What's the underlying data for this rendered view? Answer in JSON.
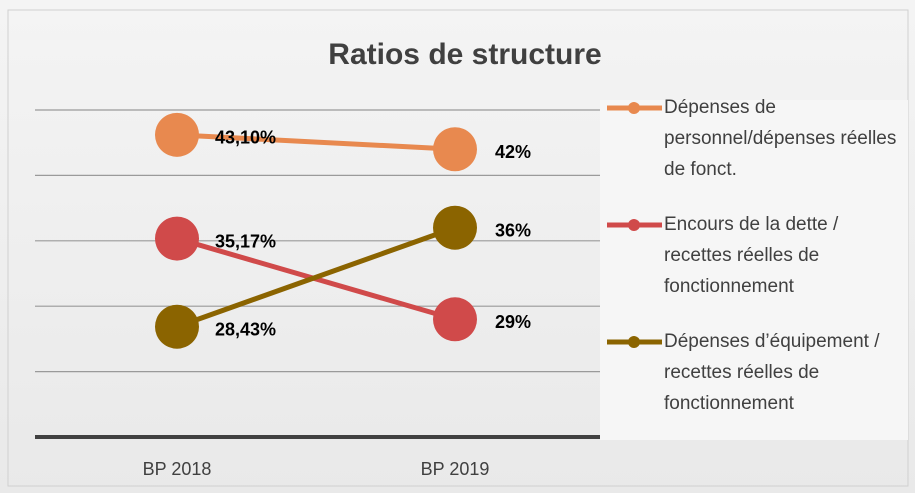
{
  "chart_data": {
    "type": "line",
    "title": "Ratios de structure",
    "categories": [
      "BP 2018",
      "BP 2019"
    ],
    "series": [
      {
        "name": "Dépenses de personnel/dépenses réelles de fonct.",
        "color": "#e8894f",
        "values": [
          43.1,
          42
        ],
        "value_labels": [
          "43,10%",
          "42%"
        ]
      },
      {
        "name": "Encours de la dette / recettes réelles de fonctionnement",
        "color": "#d04a4a",
        "values": [
          35.17,
          29
        ],
        "value_labels": [
          "35,17%",
          "29%"
        ]
      },
      {
        "name": "Dépenses d’équipement / recettes réelles de fonctionnement",
        "color": "#8b6400",
        "values": [
          28.43,
          36
        ],
        "value_labels": [
          "28,43%",
          "36%"
        ]
      }
    ],
    "ylim": [
      20,
      45
    ],
    "yticks": [
      20,
      25,
      30,
      35,
      40,
      45
    ],
    "grid": true,
    "legend": "right"
  }
}
